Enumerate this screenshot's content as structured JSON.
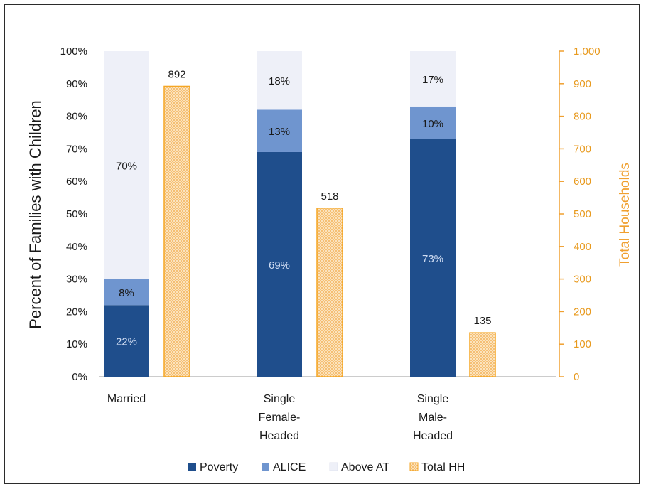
{
  "chart_data": {
    "type": "bar",
    "categories": [
      "Married",
      "Single Female-Headed",
      "Single Male-Headed"
    ],
    "category_lines": [
      [
        "Married"
      ],
      [
        "Single",
        "Female-",
        "Headed"
      ],
      [
        "Single",
        "Male-",
        "Headed"
      ]
    ],
    "stacked": true,
    "series": [
      {
        "name": "Poverty",
        "values": [
          22,
          69,
          73
        ],
        "labels": [
          "22%",
          "69%",
          "73%"
        ],
        "color": "#1f4e8c",
        "axis": "left"
      },
      {
        "name": "ALICE",
        "values": [
          8,
          13,
          10
        ],
        "labels": [
          "8%",
          "13%",
          "10%"
        ],
        "color": "#6f95cf",
        "axis": "left"
      },
      {
        "name": "Above AT",
        "values": [
          70,
          18,
          17
        ],
        "labels": [
          "70%",
          "18%",
          "17%"
        ],
        "color": "#eef0f8",
        "axis": "left"
      },
      {
        "name": "Total HH",
        "values": [
          892,
          518,
          135
        ],
        "labels": [
          "892",
          "518",
          "135"
        ],
        "color": "#f5a623",
        "axis": "right"
      }
    ],
    "ylabel": "Percent of Families with Children",
    "y2label": "Total Households",
    "ylim": [
      0,
      100
    ],
    "y2lim": [
      0,
      1000
    ],
    "yticks": [
      "0%",
      "10%",
      "20%",
      "30%",
      "40%",
      "50%",
      "60%",
      "70%",
      "80%",
      "90%",
      "100%"
    ],
    "y2ticks": [
      "0",
      "100",
      "200",
      "300",
      "400",
      "500",
      "600",
      "700",
      "800",
      "900",
      "1,000"
    ],
    "legend_position": "bottom",
    "grid": false
  }
}
